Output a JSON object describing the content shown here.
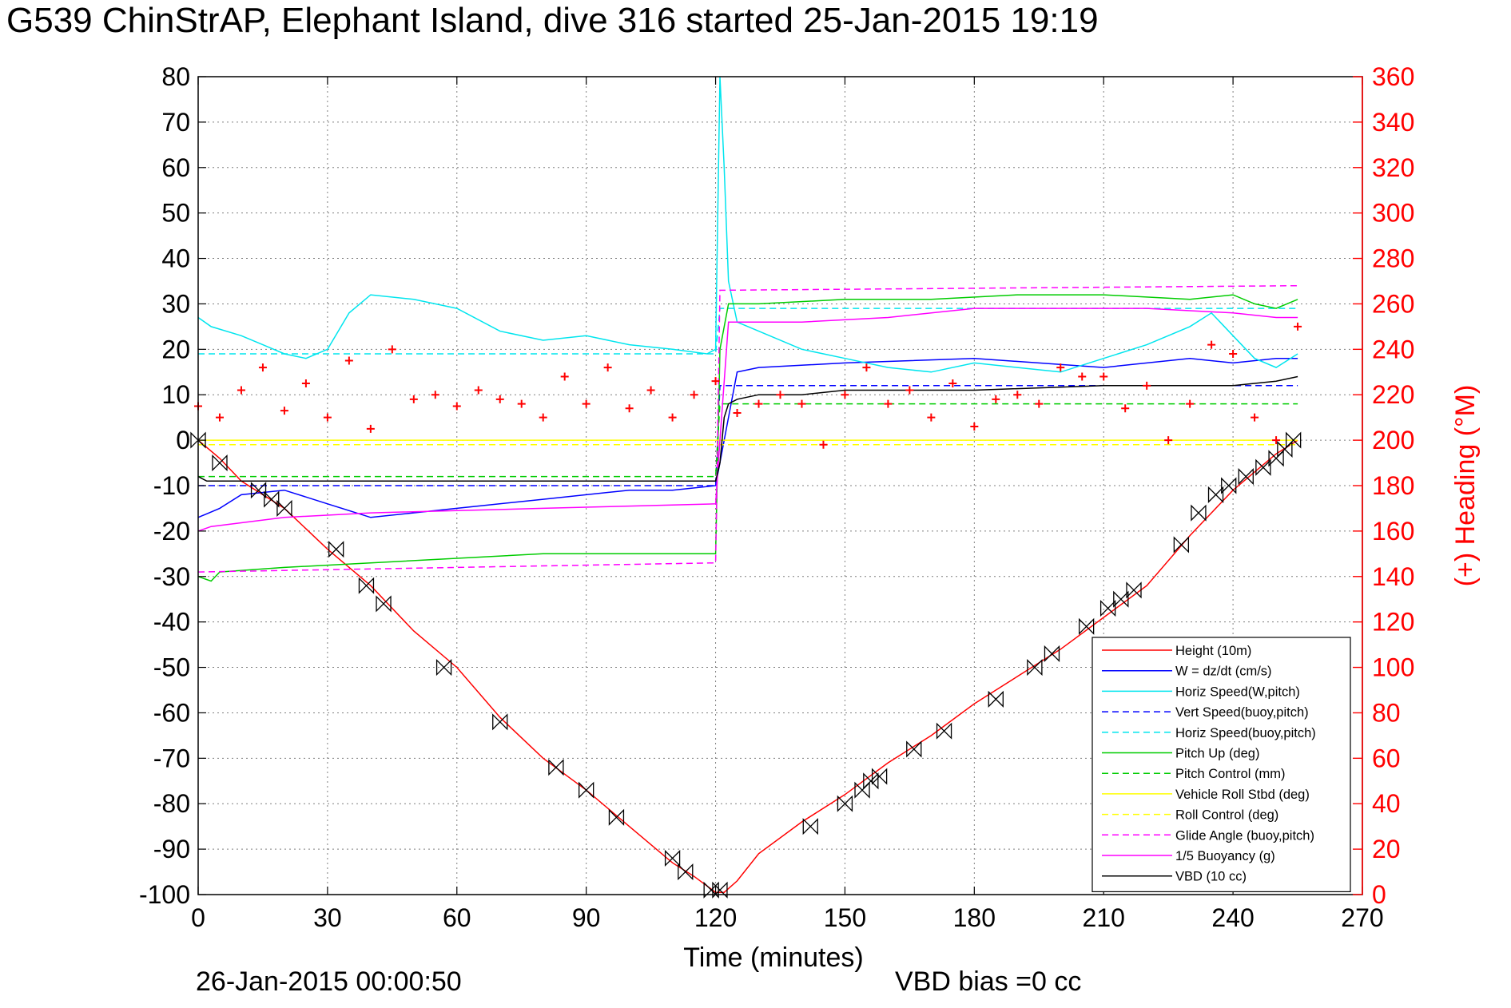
{
  "chart_data": {
    "type": "line",
    "title": "G539 ChinStrAP, Elephant Island, dive 316 started 25-Jan-2015 19:19",
    "xlabel": "Time (minutes)",
    "ylabel": "",
    "y2label": "(+) Heading (°M)",
    "xlim": [
      0,
      270
    ],
    "ylim": [
      -100,
      80
    ],
    "y2lim": [
      0,
      360
    ],
    "xticks": [
      "0",
      "30",
      "60",
      "90",
      "120",
      "150",
      "180",
      "210",
      "240",
      "270"
    ],
    "yticks": [
      "80",
      "70",
      "60",
      "50",
      "40",
      "30",
      "20",
      "10",
      "0",
      "-10",
      "-20",
      "-30",
      "-40",
      "-50",
      "-60",
      "-70",
      "-80",
      "-90",
      "-100"
    ],
    "y2ticks": [
      "360",
      "340",
      "320",
      "300",
      "280",
      "260",
      "240",
      "220",
      "200",
      "180",
      "160",
      "140",
      "120",
      "100",
      "80",
      "60",
      "40",
      "20",
      "0"
    ],
    "grid": true,
    "legend_position": "bottom-right",
    "footer_left": "26-Jan-2015 00:00:50",
    "footer_right": "VBD bias =0 cc",
    "series": [
      {
        "name": "Height (10m)",
        "color": "#ff0000",
        "style": "solid",
        "x": [
          0,
          5,
          10,
          20,
          30,
          40,
          50,
          60,
          70,
          80,
          90,
          100,
          110,
          115,
          120,
          122,
          125,
          130,
          140,
          150,
          160,
          170,
          180,
          190,
          200,
          210,
          220,
          230,
          240,
          245,
          250,
          255
        ],
        "y": [
          0,
          -4,
          -9,
          -15,
          -24,
          -32,
          -42,
          -50,
          -61,
          -70,
          -77,
          -85,
          -93,
          -96,
          -99.5,
          -99.5,
          -97,
          -91,
          -84,
          -78,
          -71,
          -65,
          -58,
          -52,
          -46,
          -39,
          -32,
          -21,
          -11,
          -7,
          -3,
          0
        ]
      },
      {
        "name": "W = dz/dt (cm/s)",
        "color": "#0000ff",
        "style": "solid",
        "x": [
          0,
          5,
          10,
          20,
          30,
          40,
          60,
          80,
          100,
          110,
          120,
          122,
          125,
          130,
          150,
          180,
          210,
          230,
          240,
          250,
          255
        ],
        "y": [
          -17,
          -15,
          -12,
          -11,
          -14,
          -17,
          -15,
          -13,
          -11,
          -11,
          -10,
          0,
          15,
          16,
          17,
          18,
          16,
          18,
          17,
          18,
          18
        ]
      },
      {
        "name": "Horiz Speed(W,pitch)",
        "color": "#00e5ee",
        "style": "solid",
        "x": [
          0,
          3,
          10,
          15,
          20,
          25,
          30,
          35,
          40,
          50,
          60,
          70,
          80,
          90,
          100,
          110,
          118,
          120,
          121,
          122,
          123,
          125,
          130,
          140,
          150,
          160,
          170,
          180,
          190,
          200,
          210,
          220,
          230,
          235,
          240,
          245,
          250,
          255
        ],
        "y": [
          27,
          25,
          23,
          21,
          19,
          18,
          20,
          28,
          32,
          31,
          29,
          24,
          22,
          23,
          21,
          20,
          19,
          20,
          80,
          60,
          35,
          26,
          24,
          20,
          18,
          16,
          15,
          17,
          16,
          15,
          18,
          21,
          25,
          28,
          23,
          18,
          16,
          19
        ]
      },
      {
        "name": "Vert Speed(buoy,pitch)",
        "color": "#0000ff",
        "style": "dashed",
        "x": [
          0,
          120,
          121,
          255
        ],
        "y": [
          -10,
          -10,
          12,
          12
        ]
      },
      {
        "name": "Horiz Speed(buoy,pitch)",
        "color": "#00e5ee",
        "style": "dashed",
        "x": [
          0,
          120,
          121,
          255
        ],
        "y": [
          19,
          19,
          29,
          29
        ]
      },
      {
        "name": "Pitch Up (deg)",
        "color": "#00cc00",
        "style": "solid",
        "x": [
          0,
          3,
          5,
          20,
          40,
          60,
          80,
          100,
          120,
          121,
          123,
          130,
          150,
          170,
          190,
          210,
          230,
          240,
          245,
          250,
          255
        ],
        "y": [
          -30,
          -31,
          -29,
          -28,
          -27,
          -26,
          -25,
          -25,
          -25,
          20,
          30,
          30,
          31,
          31,
          32,
          32,
          31,
          32,
          30,
          29,
          31
        ]
      },
      {
        "name": "Pitch Control (mm)",
        "color": "#00cc00",
        "style": "dashed",
        "x": [
          0,
          120,
          121,
          255
        ],
        "y": [
          -8,
          -8,
          8,
          8
        ]
      },
      {
        "name": "Vehicle Roll Stbd (deg)",
        "color": "#ffff00",
        "style": "solid",
        "x": [
          0,
          20,
          40,
          60,
          80,
          100,
          120,
          140,
          160,
          180,
          200,
          220,
          240,
          255
        ],
        "y": [
          0,
          0,
          0,
          0,
          0,
          0,
          0,
          0,
          0,
          0,
          0,
          0,
          0,
          0
        ]
      },
      {
        "name": "Roll Control (deg)",
        "color": "#ffff00",
        "style": "dashed",
        "x": [
          0,
          255
        ],
        "y": [
          -1,
          -1
        ]
      },
      {
        "name": "Glide Angle (buoy,pitch)",
        "color": "#ff00ff",
        "style": "dashed",
        "x": [
          0,
          120,
          121,
          255
        ],
        "y": [
          -29,
          -27,
          33,
          34
        ]
      },
      {
        "name": "1/5 Buoyancy (g)",
        "color": "#ff00ff",
        "style": "solid",
        "x": [
          0,
          3,
          20,
          40,
          60,
          80,
          100,
          120,
          121,
          123,
          140,
          160,
          180,
          200,
          220,
          240,
          250,
          255
        ],
        "y": [
          -20,
          -19,
          -17,
          -16,
          -15.5,
          -15,
          -14.5,
          -14,
          0,
          26,
          26,
          27,
          29,
          29,
          29,
          28,
          27,
          27
        ]
      },
      {
        "name": "VBD (10 cc)",
        "color": "#000000",
        "style": "solid",
        "x": [
          0,
          2,
          120,
          121,
          122,
          123,
          125,
          130,
          140,
          150,
          180,
          210,
          240,
          250,
          255
        ],
        "y": [
          -8,
          -9,
          -9,
          -5,
          5,
          8,
          9,
          10,
          10,
          11,
          11,
          12,
          12,
          13,
          14
        ]
      },
      {
        "name": "",
        "color": "#ff0000",
        "style": "markers",
        "axis": "y2",
        "x": [
          0,
          5,
          10,
          15,
          20,
          25,
          30,
          35,
          40,
          45,
          50,
          55,
          60,
          65,
          70,
          75,
          80,
          85,
          90,
          95,
          100,
          105,
          110,
          115,
          120,
          125,
          130,
          135,
          140,
          145,
          150,
          155,
          160,
          165,
          170,
          175,
          180,
          185,
          190,
          195,
          200,
          205,
          210,
          215,
          220,
          225,
          230,
          235,
          240,
          245,
          250,
          255
        ],
        "y": [
          215,
          210,
          222,
          232,
          213,
          225,
          210,
          235,
          205,
          240,
          218,
          220,
          215,
          222,
          218,
          216,
          210,
          228,
          216,
          232,
          214,
          222,
          210,
          220,
          226,
          212,
          216,
          220,
          216,
          198,
          220,
          232,
          216,
          222,
          210,
          225,
          206,
          218,
          220,
          216,
          232,
          228,
          228,
          214,
          224,
          200,
          216,
          242,
          238,
          210,
          200,
          250
        ]
      }
    ],
    "markers": {
      "name": "",
      "symbol": "hourglass",
      "color": "#000000",
      "x": [
        0,
        5,
        14,
        17,
        20,
        32,
        39,
        43,
        57,
        70,
        83,
        90,
        97,
        110,
        113,
        119,
        121,
        142,
        150,
        154,
        156,
        158,
        166,
        173,
        185,
        194,
        198,
        206,
        211,
        214,
        217,
        228,
        232,
        236,
        239,
        243,
        247,
        250,
        252,
        254
      ],
      "y": [
        0,
        -5,
        -11,
        -13,
        -15,
        -24,
        -32,
        -36,
        -50,
        -62,
        -72,
        -77,
        -83,
        -92,
        -95,
        -99,
        -99,
        -85,
        -80,
        -77,
        -75,
        -74,
        -68,
        -64,
        -57,
        -50,
        -47,
        -41,
        -37,
        -35,
        -33,
        -23,
        -16,
        -12,
        -10,
        -8,
        -6,
        -4,
        -2,
        0
      ]
    }
  }
}
